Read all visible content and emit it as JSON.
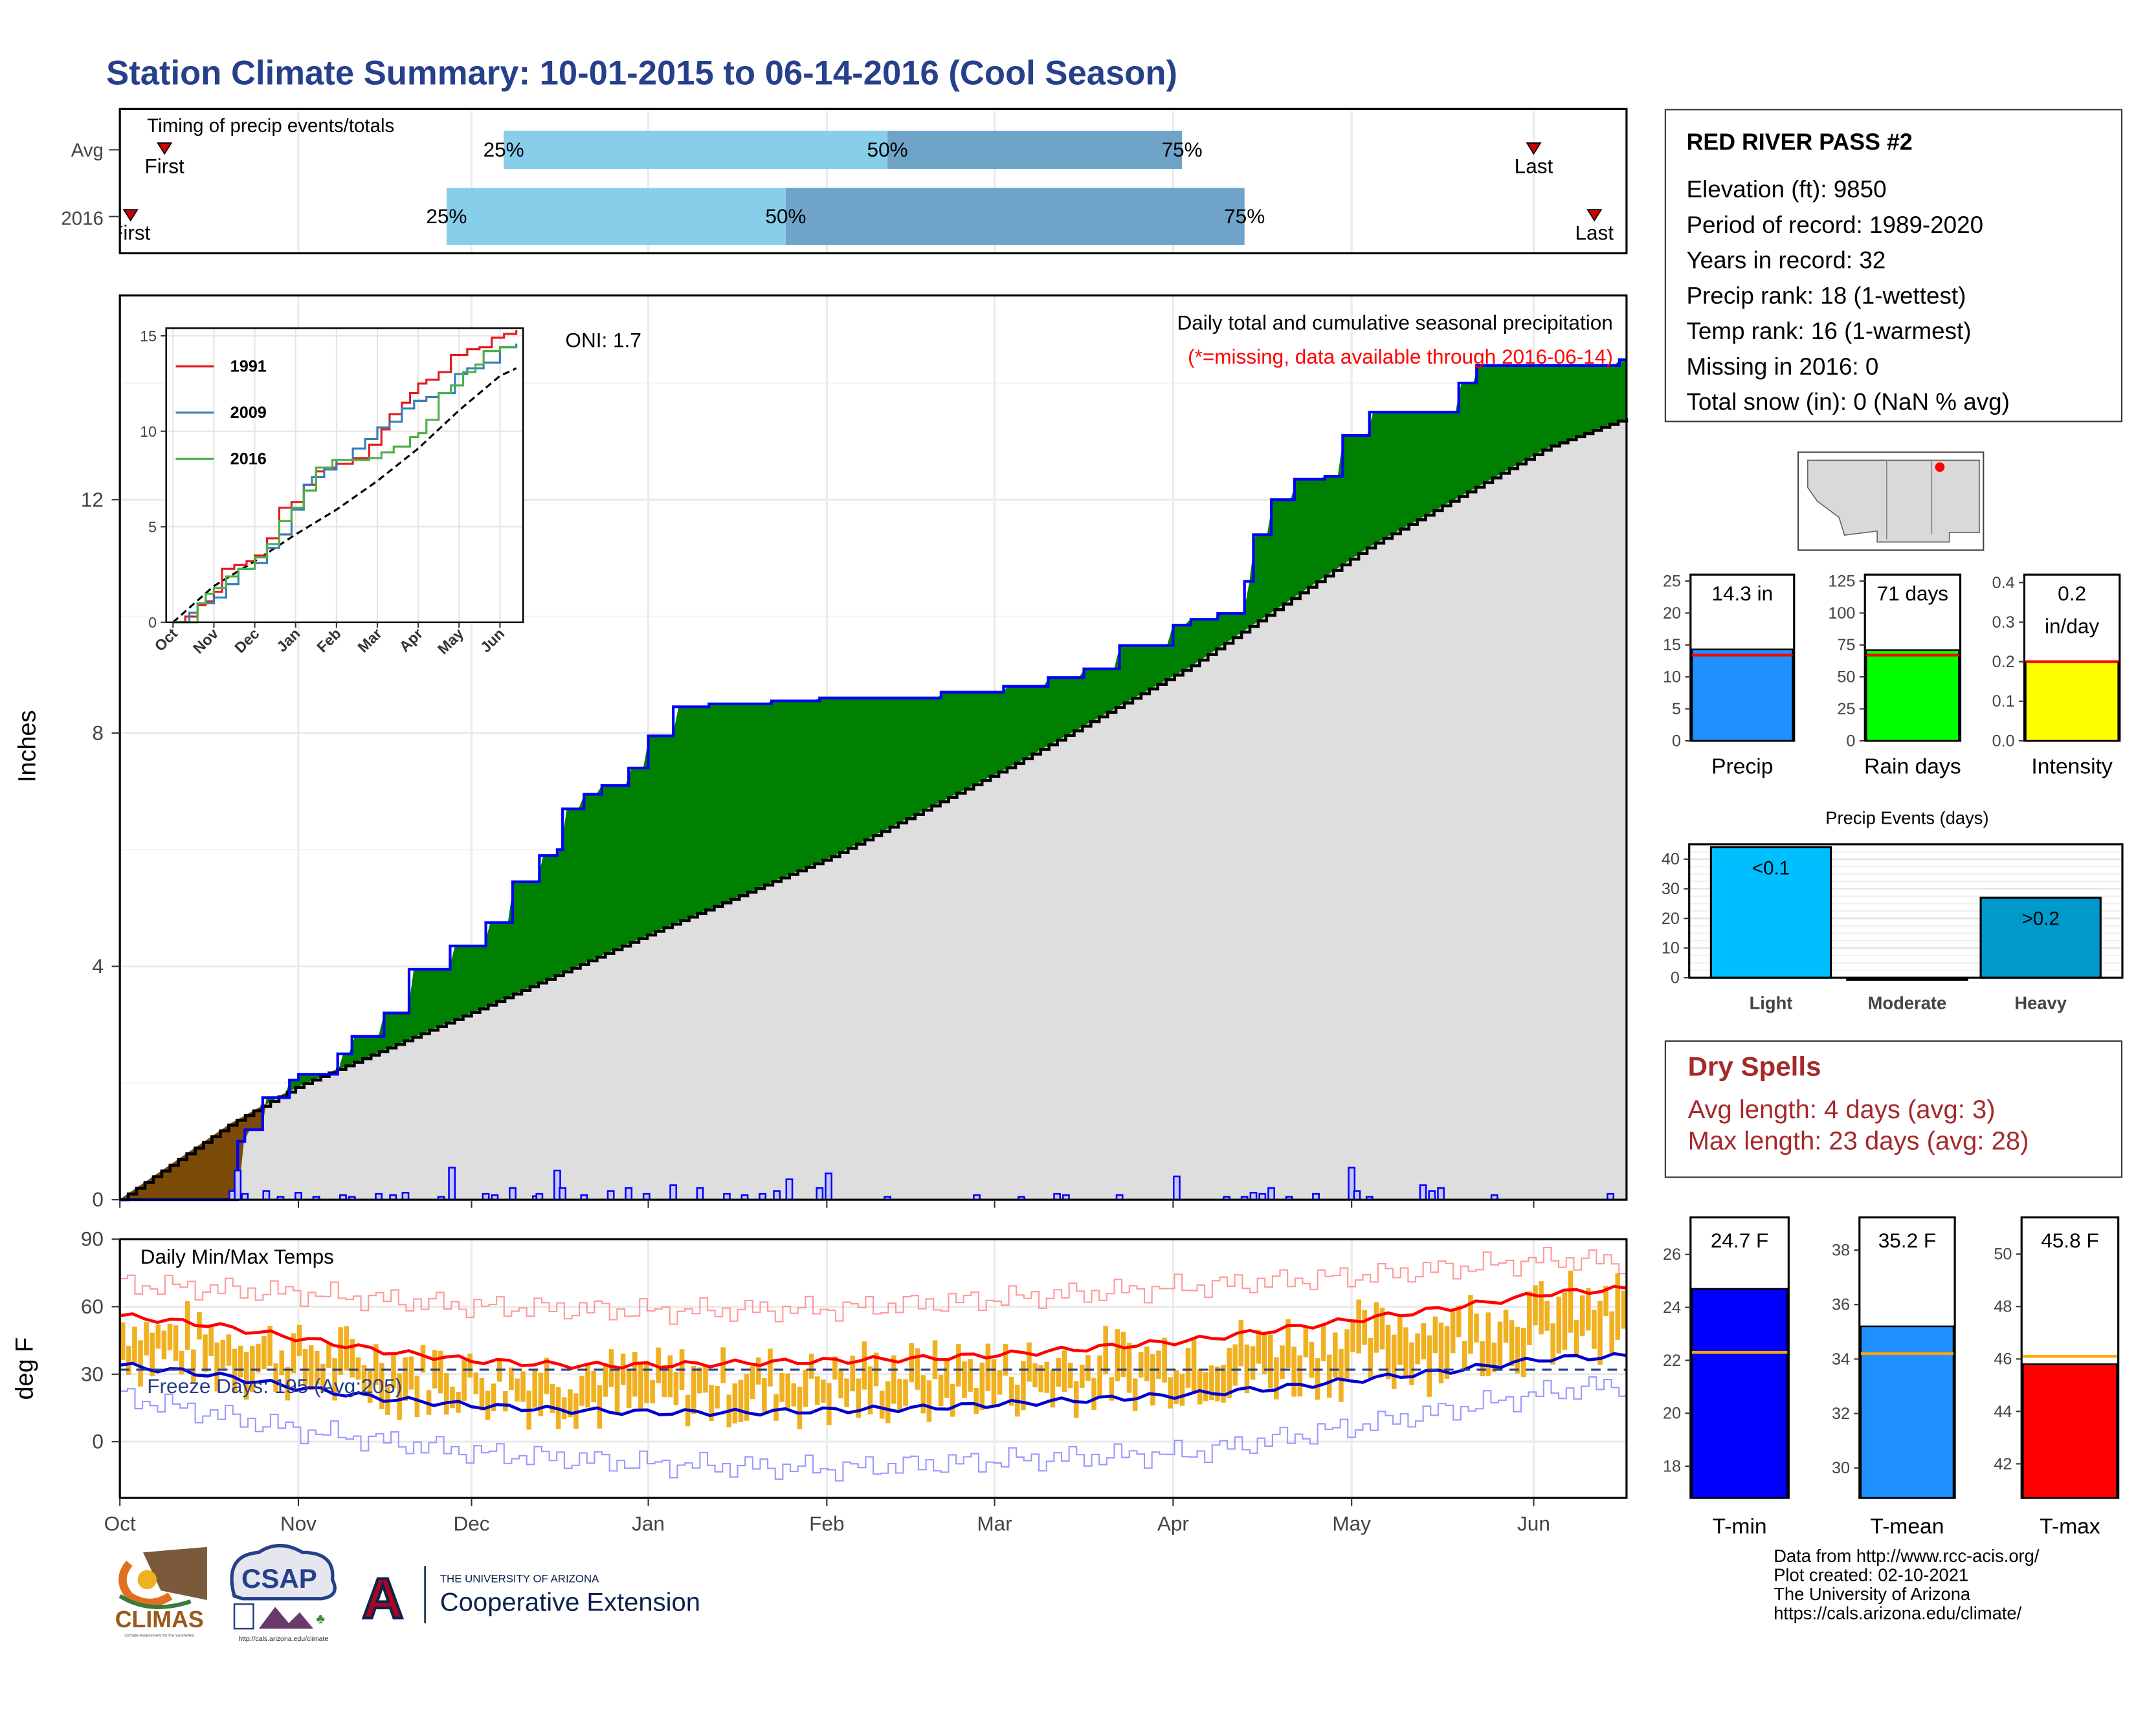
{
  "title": "Station Climate Summary: 10-01-2015 to 06-14-2016 (Cool Season)",
  "timing": {
    "label": "Timing of precip events/totals",
    "rows": [
      {
        "name": "Avg",
        "first_label": "First",
        "last_label": "Last",
        "first": 0.25,
        "q25": 2.15,
        "q50": 4.3,
        "q75": 5.95,
        "last": 7.92
      },
      {
        "name": "2016",
        "first_label": "First",
        "last_label": "Last",
        "first": 0.06,
        "q25": 1.83,
        "q50": 3.73,
        "q75": 6.3,
        "last": 8.26
      }
    ],
    "pct_labels": [
      "25%",
      "50%",
      "75%"
    ],
    "colors": {
      "light": "#87ceeb",
      "dark": "#6fa3c8",
      "marker": "#cc0000"
    }
  },
  "x_axis": {
    "months": [
      "Oct",
      "Nov",
      "Dec",
      "Jan",
      "Feb",
      "Mar",
      "Apr",
      "May",
      "Jun"
    ],
    "month_offsets": [
      0,
      1,
      1.97,
      2.96,
      3.96,
      4.9,
      5.9,
      6.9,
      7.92
    ],
    "end": 8.44
  },
  "precip": {
    "ylabel": "Inches",
    "y_ticks": [
      0,
      4,
      8,
      12
    ],
    "ylim": [
      0,
      15.5
    ],
    "oni_label": "ONI: 1.7",
    "caption1": "Daily total and cumulative seasonal precipitation",
    "caption2": "(*=missing, data available through 2016-06-14)",
    "colors": {
      "above": "#008000",
      "below": "#7a4a06",
      "avg_fill": "#dedede",
      "line": "#0000ff"
    }
  },
  "chart_data": [
    {
      "type": "area",
      "title": "Daily total and cumulative seasonal precipitation",
      "ylabel": "Inches",
      "x_unit": "months since Oct 1",
      "ylim": [
        0,
        15.5
      ],
      "series": [
        {
          "name": "2016 cumulative",
          "x": [
            0,
            0.62,
            0.66,
            0.7,
            0.8,
            0.95,
            1.0,
            1.22,
            1.3,
            1.48,
            1.62,
            1.8,
            1.85,
            2.05,
            2.2,
            2.35,
            2.45,
            2.48,
            2.6,
            2.7,
            2.85,
            2.96,
            3.1,
            3.3,
            3.4,
            3.5,
            3.65,
            3.75,
            3.92,
            3.96,
            4.2,
            4.6,
            4.95,
            5.2,
            5.4,
            5.6,
            5.9,
            6.0,
            6.15,
            6.3,
            6.35,
            6.45,
            6.58,
            6.75,
            6.85,
            7.0,
            7.1,
            7.25,
            7.5,
            7.6,
            7.85,
            8.0,
            8.15,
            8.4
          ],
          "y": [
            0,
            0,
            1.0,
            1.2,
            1.75,
            2.05,
            2.15,
            2.5,
            2.8,
            3.2,
            3.95,
            3.95,
            4.35,
            4.75,
            5.45,
            5.9,
            6.0,
            6.7,
            6.95,
            7.1,
            7.4,
            7.95,
            8.45,
            8.5,
            8.5,
            8.5,
            8.55,
            8.55,
            8.6,
            8.6,
            8.6,
            8.7,
            8.8,
            8.95,
            9.1,
            9.5,
            9.85,
            9.95,
            10.05,
            10.6,
            11.4,
            12.0,
            12.35,
            12.4,
            13.1,
            13.5,
            13.5,
            13.5,
            14.0,
            14.3,
            14.3,
            14.3,
            14.3,
            14.4
          ]
        },
        {
          "name": "Avg cumulative",
          "x": [
            0,
            0.62,
            1.0,
            2.0,
            3.0,
            4.0,
            5.0,
            6.0,
            7.0,
            8.0,
            8.44
          ],
          "y": [
            0,
            1.3,
            1.95,
            3.25,
            4.6,
            5.9,
            7.45,
            9.15,
            11.2,
            12.9,
            13.4
          ]
        }
      ]
    },
    {
      "type": "bar",
      "title": "Daily precipitation",
      "x": [
        0.63,
        0.66,
        0.7,
        0.82,
        0.9,
        1.0,
        1.1,
        1.25,
        1.3,
        1.45,
        1.53,
        1.6,
        1.8,
        1.86,
        2.05,
        2.1,
        2.2,
        2.33,
        2.35,
        2.45,
        2.48,
        2.6,
        2.75,
        2.85,
        2.95,
        3.1,
        3.25,
        3.4,
        3.5,
        3.6,
        3.68,
        3.75,
        3.92,
        3.97,
        4.3,
        4.8,
        5.05,
        5.25,
        5.3,
        5.6,
        5.92,
        6.2,
        6.3,
        6.35,
        6.4,
        6.45,
        6.55,
        6.7,
        6.9,
        6.93,
        7.0,
        7.3,
        7.35,
        7.4,
        7.7,
        8.35
      ],
      "values": [
        0.15,
        0.5,
        0.1,
        0.15,
        0.05,
        0.12,
        0.05,
        0.08,
        0.05,
        0.1,
        0.08,
        0.12,
        0.05,
        0.55,
        0.1,
        0.08,
        0.2,
        0.06,
        0.1,
        0.5,
        0.2,
        0.08,
        0.15,
        0.2,
        0.1,
        0.25,
        0.2,
        0.1,
        0.08,
        0.1,
        0.15,
        0.35,
        0.2,
        0.45,
        0.05,
        0.08,
        0.05,
        0.1,
        0.08,
        0.08,
        0.4,
        0.05,
        0.05,
        0.12,
        0.1,
        0.2,
        0.05,
        0.1,
        0.55,
        0.15,
        0.05,
        0.25,
        0.15,
        0.2,
        0.08,
        0.1
      ]
    },
    {
      "type": "line",
      "title": "Daily Min/Max Temps",
      "ylabel": "deg F",
      "ylim": [
        -25,
        90
      ],
      "series": [
        {
          "name": "Avg max",
          "x": [
            0,
            0.5,
            1,
            1.5,
            2,
            2.5,
            3,
            3.5,
            4,
            4.5,
            5,
            5.5,
            6,
            6.5,
            7,
            7.5,
            8,
            8.44
          ],
          "y": [
            56,
            52,
            46,
            40,
            36,
            34,
            34,
            35,
            36,
            37,
            39,
            42,
            45,
            50,
            55,
            60,
            66,
            68
          ]
        },
        {
          "name": "Avg min",
          "x": [
            0,
            0.5,
            1,
            1.5,
            2,
            2.5,
            3,
            3.5,
            4,
            4.5,
            5,
            5.5,
            6,
            6.5,
            7,
            7.5,
            8,
            8.44
          ],
          "y": [
            34,
            30,
            24,
            19,
            16,
            14,
            13,
            13,
            14,
            15,
            17,
            19,
            21,
            24,
            28,
            32,
            37,
            38
          ]
        },
        {
          "name": "Record max",
          "x": [
            0,
            1,
            2,
            3,
            4,
            5,
            6,
            7,
            8,
            8.44
          ],
          "y": [
            70,
            66,
            60,
            58,
            59,
            64,
            69,
            74,
            81,
            80
          ]
        },
        {
          "name": "Record min",
          "x": [
            0,
            1,
            2,
            3,
            4,
            5,
            6,
            7,
            8,
            8.44
          ],
          "y": [
            20,
            5,
            -5,
            -10,
            -12,
            -8,
            -5,
            8,
            22,
            26
          ]
        }
      ],
      "freeze_line": 32
    },
    {
      "type": "line",
      "title": "inset cumulative",
      "x_ticks": [
        "Oct",
        "Nov",
        "Dec",
        "Jan",
        "Feb",
        "Mar",
        "Apr",
        "May",
        "Jun"
      ],
      "y_ticks": [
        0,
        5,
        10,
        15
      ],
      "series": [
        {
          "name": "1991"
        },
        {
          "name": "2009"
        },
        {
          "name": "2016"
        }
      ]
    },
    {
      "type": "bar",
      "title": "Precip",
      "value": 14.3,
      "value_label": "14.3 in",
      "avg": 13.4,
      "y_ticks": [
        0,
        5,
        10,
        15,
        20,
        25
      ],
      "ylim": [
        0,
        26
      ]
    },
    {
      "type": "bar",
      "title": "Rain days",
      "value": 71,
      "value_label": "71 days",
      "avg": 67,
      "y_ticks": [
        0,
        25,
        50,
        75,
        100,
        125
      ],
      "ylim": [
        0,
        130
      ]
    },
    {
      "type": "bar",
      "title": "Intensity",
      "value": 0.2,
      "value_label": "0.2 in/day",
      "avg": 0.2,
      "y_ticks": [
        0.0,
        0.1,
        0.2,
        0.3,
        0.4
      ],
      "ylim": [
        0,
        0.42
      ]
    },
    {
      "type": "bar",
      "title": "Precip Events (days)",
      "categories": [
        "Light",
        "Moderate",
        "Heavy"
      ],
      "values": [
        44,
        0,
        27
      ],
      "bar_labels": [
        "<0.1",
        "",
        ">0.2"
      ],
      "y_ticks": [
        0,
        10,
        20,
        30,
        40
      ],
      "ylim": [
        0,
        45
      ]
    },
    {
      "type": "bar",
      "title": "T-min",
      "value": 24.7,
      "value_label": "24.7 F",
      "avg": 22.3,
      "y_ticks": [
        18,
        20,
        22,
        24,
        26
      ],
      "ylim": [
        16.8,
        27.4
      ]
    },
    {
      "type": "bar",
      "title": "T-mean",
      "value": 35.2,
      "value_label": "35.2 F",
      "avg": 34.2,
      "y_ticks": [
        30,
        32,
        34,
        36,
        38
      ],
      "ylim": [
        28.9,
        39.2
      ]
    },
    {
      "type": "bar",
      "title": "T-max",
      "value": 45.8,
      "value_label": "45.8 F",
      "avg": 46.1,
      "y_ticks": [
        42,
        44,
        46,
        48,
        50
      ],
      "ylim": [
        40.7,
        51.4
      ]
    }
  ],
  "inset": {
    "ticks_x": [
      "Oct",
      "Nov",
      "Dec",
      "Jan",
      "Feb",
      "Mar",
      "Apr",
      "May",
      "Jun"
    ],
    "ticks_y": [
      "0",
      "5",
      "10",
      "15"
    ],
    "legend": [
      {
        "label": "1991",
        "color": "#e41a1c"
      },
      {
        "label": "2009",
        "color": "#377eb8"
      },
      {
        "label": "2016",
        "color": "#4daf4a"
      }
    ]
  },
  "temp": {
    "label": "Daily Min/Max Temps",
    "ylabel": "deg F",
    "y_ticks": [
      0,
      30,
      60,
      90
    ],
    "freeze_label": "Freeze Days: 195 (Avg:205)",
    "colors": {
      "bars": "#f0b020",
      "avg_max": "#ff0000",
      "avg_min": "#0000cc",
      "rec_max": "#ff8080",
      "rec_min": "#8080ff"
    }
  },
  "station": {
    "name": "RED RIVER PASS #2",
    "lines": [
      "Elevation (ft): 9850",
      "Period of record: 1989-2020",
      "Years in record: 32",
      "Precip rank: 18 (1-wettest)",
      "Temp rank: 16 (1-warmest)",
      "Missing in 2016: 0",
      "Total snow (in): 0 (NaN % avg)"
    ]
  },
  "mini_bars": {
    "precip": {
      "label": "Precip",
      "value_label": "14.3 in",
      "color": "#1e90ff"
    },
    "rain_days": {
      "label": "Rain days",
      "value_label": "71 days",
      "color": "#00ff00"
    },
    "intensity": {
      "label": "Intensity",
      "value_label_1": "0.2",
      "value_label_2": "in/day",
      "color": "#ffff00"
    }
  },
  "events": {
    "title": "Precip Events (days)",
    "labels": [
      "Light",
      "Moderate",
      "Heavy"
    ],
    "bar_labels": [
      "<0.1",
      ">0.2"
    ],
    "colors": [
      "#00bfff",
      "#333333",
      "#0099cc"
    ]
  },
  "dry_spells": {
    "title": "Dry Spells",
    "avg_line": "Avg length: 4 days (avg: 3)",
    "max_line": "Max length: 23 days (avg: 28)",
    "color": "#a52a2a"
  },
  "temp_bars": {
    "tmin": {
      "label": "T-min",
      "value_label": "24.7 F",
      "color": "#0000ff"
    },
    "tmean": {
      "label": "T-mean",
      "value_label": "35.2 F",
      "color": "#1e90ff"
    },
    "tmax": {
      "label": "T-max",
      "value_label": "45.8 F",
      "color": "#ff0000"
    },
    "avg_color": "#ffa500"
  },
  "footer": {
    "lines": [
      "Data from http://www.rcc-acis.org/",
      "Plot created: 02-10-2021",
      "The University of Arizona",
      "https://cals.arizona.edu/climate/"
    ],
    "logos": {
      "climas": "CLIMAS",
      "climas_sub": "Climate Assessment for the Southwest",
      "csap": "CSAP",
      "csap_url": "http://cals.arizona.edu/climate",
      "ua_letter": "A",
      "ua_line1": "THE UNIVERSITY OF ARIZONA",
      "ua_line2": "Cooperative Extension"
    }
  }
}
